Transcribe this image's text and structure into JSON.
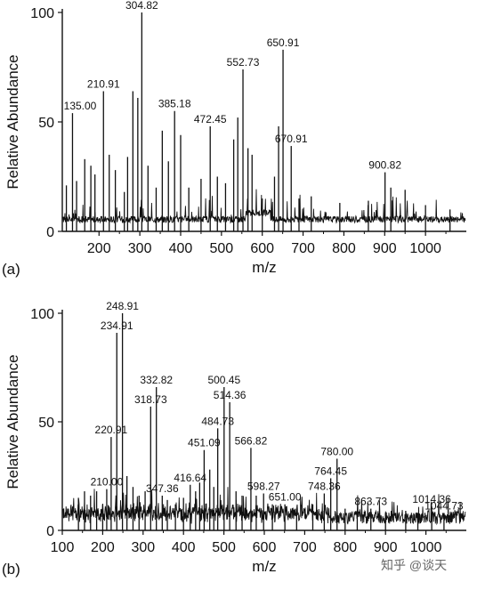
{
  "chart_data": [
    {
      "panel_label": "(a)",
      "type": "line",
      "xlabel": "m/z",
      "ylabel": "Relative Abundance",
      "xlim": [
        110,
        1100
      ],
      "ylim": [
        0,
        100
      ],
      "xticks": [
        200,
        300,
        400,
        500,
        600,
        700,
        800,
        900,
        1000
      ],
      "yticks": [
        0,
        50,
        100
      ],
      "peaks": [
        {
          "x": 135.0,
          "y": 54,
          "label": "135.00"
        },
        {
          "x": 210.91,
          "y": 64,
          "label": "210.91"
        },
        {
          "x": 283.0,
          "y": 64,
          "label": ""
        },
        {
          "x": 304.82,
          "y": 100,
          "label": "304.82"
        },
        {
          "x": 385.18,
          "y": 55,
          "label": "385.18"
        },
        {
          "x": 472.45,
          "y": 48,
          "label": "472.45"
        },
        {
          "x": 552.73,
          "y": 74,
          "label": "552.73"
        },
        {
          "x": 650.91,
          "y": 83,
          "label": "650.91"
        },
        {
          "x": 670.91,
          "y": 39,
          "label": "670.91"
        },
        {
          "x": 900.82,
          "y": 27,
          "label": "900.82"
        },
        {
          "x": 120,
          "y": 21,
          "label": ""
        },
        {
          "x": 145,
          "y": 23,
          "label": ""
        },
        {
          "x": 165,
          "y": 33,
          "label": ""
        },
        {
          "x": 180,
          "y": 30,
          "label": ""
        },
        {
          "x": 190,
          "y": 26,
          "label": ""
        },
        {
          "x": 225,
          "y": 35,
          "label": ""
        },
        {
          "x": 240,
          "y": 28,
          "label": ""
        },
        {
          "x": 262,
          "y": 18,
          "label": ""
        },
        {
          "x": 270,
          "y": 34,
          "label": ""
        },
        {
          "x": 295,
          "y": 61,
          "label": ""
        },
        {
          "x": 320,
          "y": 30,
          "label": ""
        },
        {
          "x": 340,
          "y": 20,
          "label": ""
        },
        {
          "x": 355,
          "y": 46,
          "label": ""
        },
        {
          "x": 370,
          "y": 32,
          "label": ""
        },
        {
          "x": 400,
          "y": 44,
          "label": ""
        },
        {
          "x": 420,
          "y": 20,
          "label": ""
        },
        {
          "x": 450,
          "y": 24,
          "label": ""
        },
        {
          "x": 490,
          "y": 25,
          "label": ""
        },
        {
          "x": 510,
          "y": 22,
          "label": ""
        },
        {
          "x": 530,
          "y": 42,
          "label": ""
        },
        {
          "x": 540,
          "y": 52,
          "label": ""
        },
        {
          "x": 565,
          "y": 38,
          "label": ""
        },
        {
          "x": 575,
          "y": 35,
          "label": ""
        },
        {
          "x": 600,
          "y": 15,
          "label": ""
        },
        {
          "x": 630,
          "y": 25,
          "label": ""
        },
        {
          "x": 640,
          "y": 48,
          "label": ""
        },
        {
          "x": 690,
          "y": 15,
          "label": ""
        },
        {
          "x": 720,
          "y": 16,
          "label": ""
        },
        {
          "x": 790,
          "y": 13,
          "label": ""
        },
        {
          "x": 860,
          "y": 14,
          "label": ""
        },
        {
          "x": 915,
          "y": 20,
          "label": ""
        },
        {
          "x": 950,
          "y": 19,
          "label": ""
        },
        {
          "x": 1000,
          "y": 12,
          "label": ""
        },
        {
          "x": 1060,
          "y": 10,
          "label": ""
        }
      ]
    },
    {
      "panel_label": "(b)",
      "type": "line",
      "xlabel": "m/z",
      "ylabel": "Relative Abundance",
      "xlim": [
        100,
        1100
      ],
      "ylim": [
        0,
        100
      ],
      "xticks": [
        100,
        200,
        300,
        400,
        500,
        600,
        700,
        800,
        900,
        1000
      ],
      "yticks": [
        0,
        50,
        100
      ],
      "peaks": [
        {
          "x": 210.0,
          "y": 19,
          "label": "210.00"
        },
        {
          "x": 220.91,
          "y": 43,
          "label": "220.91"
        },
        {
          "x": 234.91,
          "y": 91,
          "label": "234.91"
        },
        {
          "x": 248.91,
          "y": 100,
          "label": "248.91"
        },
        {
          "x": 318.73,
          "y": 57,
          "label": "318.73"
        },
        {
          "x": 332.82,
          "y": 66,
          "label": "332.82"
        },
        {
          "x": 347.36,
          "y": 16,
          "label": "347.36"
        },
        {
          "x": 416.64,
          "y": 21,
          "label": "416.64"
        },
        {
          "x": 451.09,
          "y": 37,
          "label": "451.09"
        },
        {
          "x": 484.73,
          "y": 47,
          "label": "484.73"
        },
        {
          "x": 500.45,
          "y": 66,
          "label": "500.45"
        },
        {
          "x": 514.36,
          "y": 59,
          "label": "514.36"
        },
        {
          "x": 566.82,
          "y": 38,
          "label": "566.82"
        },
        {
          "x": 598.27,
          "y": 17,
          "label": "598.27"
        },
        {
          "x": 651.0,
          "y": 12,
          "label": "651.00"
        },
        {
          "x": 748.36,
          "y": 17,
          "label": "748.36"
        },
        {
          "x": 764.45,
          "y": 24,
          "label": "764.45"
        },
        {
          "x": 780.0,
          "y": 33,
          "label": "780.00"
        },
        {
          "x": 863.73,
          "y": 10,
          "label": "863.73"
        },
        {
          "x": 1014.36,
          "y": 11,
          "label": "1014.36"
        },
        {
          "x": 1044.73,
          "y": 8,
          "label": "1044.73"
        },
        {
          "x": 140,
          "y": 15,
          "label": ""
        },
        {
          "x": 155,
          "y": 18,
          "label": ""
        },
        {
          "x": 170,
          "y": 16,
          "label": ""
        },
        {
          "x": 185,
          "y": 18,
          "label": ""
        },
        {
          "x": 200,
          "y": 12,
          "label": ""
        },
        {
          "x": 260,
          "y": 25,
          "label": ""
        },
        {
          "x": 275,
          "y": 20,
          "label": ""
        },
        {
          "x": 290,
          "y": 16,
          "label": ""
        },
        {
          "x": 305,
          "y": 18,
          "label": ""
        },
        {
          "x": 360,
          "y": 14,
          "label": ""
        },
        {
          "x": 380,
          "y": 12,
          "label": ""
        },
        {
          "x": 400,
          "y": 15,
          "label": ""
        },
        {
          "x": 430,
          "y": 18,
          "label": ""
        },
        {
          "x": 440,
          "y": 22,
          "label": ""
        },
        {
          "x": 465,
          "y": 28,
          "label": ""
        },
        {
          "x": 475,
          "y": 20,
          "label": ""
        },
        {
          "x": 530,
          "y": 18,
          "label": ""
        },
        {
          "x": 545,
          "y": 16,
          "label": ""
        },
        {
          "x": 580,
          "y": 16,
          "label": ""
        },
        {
          "x": 620,
          "y": 12,
          "label": ""
        },
        {
          "x": 680,
          "y": 10,
          "label": ""
        },
        {
          "x": 720,
          "y": 12,
          "label": ""
        },
        {
          "x": 800,
          "y": 10,
          "label": ""
        },
        {
          "x": 830,
          "y": 9,
          "label": ""
        },
        {
          "x": 900,
          "y": 8,
          "label": ""
        },
        {
          "x": 950,
          "y": 9,
          "label": ""
        },
        {
          "x": 980,
          "y": 8,
          "label": ""
        }
      ]
    }
  ],
  "watermark": "知乎 @谈天",
  "colors": {
    "line": "#111111",
    "axis": "#111111",
    "background": "#ffffff"
  }
}
